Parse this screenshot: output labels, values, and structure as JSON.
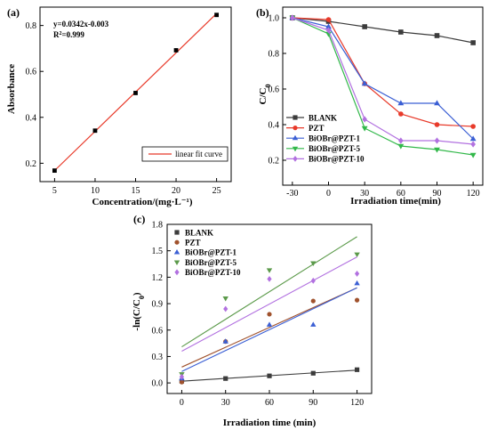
{
  "colors": {
    "BLANK": "#3c3c3c",
    "PZT": "#e83a2a",
    "BiOBr@PZT-1": "#3b5fd4",
    "BiOBr@PZT-5": "#32b84a",
    "BiOBr@PZT-10": "#b271e0",
    "PZT_c": "#a0522d",
    "BiOBr@PZT-5_c": "#5b9a4a",
    "fit_a": "#e83a2a"
  },
  "chart_data": [
    {
      "panel": "(a)",
      "type": "scatter",
      "xlabel": "Concentration/(mg·L⁻¹)",
      "ylabel": "Absorbance",
      "xlim": [
        3.2,
        26.8
      ],
      "ylim": [
        0.12,
        0.88
      ],
      "xticks": [
        5,
        10,
        15,
        20,
        25
      ],
      "yticks": [
        0.2,
        0.4,
        0.6,
        0.8
      ],
      "x": [
        5,
        10,
        15,
        20,
        25
      ],
      "y": [
        0.168,
        0.342,
        0.506,
        0.692,
        0.846
      ],
      "fit": {
        "slope": 0.0342,
        "intercept": -0.003
      },
      "annotation_equation": "y=0.0342x-0.003",
      "annotation_r2_prefix": "R",
      "annotation_r2_value": "=0.999",
      "legend": "linear fit curve",
      "legend_position": "bottom-right"
    },
    {
      "panel": "(b)",
      "type": "line",
      "xlabel": "Irradiation time(min)",
      "ylabel": "C/C",
      "ylabel_sub": "0",
      "xlim": [
        -38,
        128
      ],
      "ylim": [
        0.06,
        1.06
      ],
      "x": [
        -30,
        0,
        30,
        60,
        90,
        120
      ],
      "yticks": [
        0.2,
        0.4,
        0.6,
        0.8,
        1.0
      ],
      "ytick_labels": [
        "0.2",
        "0.4",
        "0.6",
        "0.8",
        "1.0"
      ],
      "legend_position": "lower-left",
      "series": [
        {
          "name": "BLANK",
          "marker": "square",
          "values": [
            1.0,
            0.98,
            0.95,
            0.92,
            0.9,
            0.86
          ]
        },
        {
          "name": "PZT",
          "marker": "circle",
          "values": [
            1.0,
            0.99,
            0.63,
            0.46,
            0.4,
            0.39
          ]
        },
        {
          "name": "BiOBr@PZT-1",
          "marker": "triangle-up",
          "values": [
            1.0,
            0.95,
            0.63,
            0.52,
            0.52,
            0.32
          ]
        },
        {
          "name": "BiOBr@PZT-5",
          "marker": "triangle-down",
          "values": [
            1.0,
            0.91,
            0.38,
            0.28,
            0.26,
            0.23
          ]
        },
        {
          "name": "BiOBr@PZT-10",
          "marker": "diamond",
          "values": [
            1.0,
            0.93,
            0.43,
            0.31,
            0.31,
            0.29
          ]
        }
      ]
    },
    {
      "panel": "(c)",
      "type": "scatter",
      "xlabel": "Irradiation time (min)",
      "ylabel": "-ln(C/C",
      "ylabel_sub": "0",
      "ylabel_end": ")",
      "xlim": [
        -10,
        130
      ],
      "ylim": [
        -0.12,
        1.8
      ],
      "x": [
        0,
        30,
        60,
        90,
        120
      ],
      "yticks": [
        0.0,
        0.3,
        0.6,
        0.9,
        1.2,
        1.5,
        1.8
      ],
      "ytick_labels": [
        "0.0",
        "0.3",
        "0.6",
        "0.9",
        "1.2",
        "1.5",
        "1.8"
      ],
      "legend_position": "top-left",
      "series": [
        {
          "name": "BLANK",
          "marker": "square",
          "values": [
            0.02,
            0.05,
            0.08,
            0.11,
            0.15
          ],
          "fit": [
            0.02,
            0.145
          ]
        },
        {
          "name": "PZT",
          "marker": "circle",
          "values": [
            0.01,
            0.47,
            0.78,
            0.93,
            0.94
          ],
          "fit": [
            0.18,
            1.08
          ]
        },
        {
          "name": "BiOBr@PZT-1",
          "marker": "triangle-up",
          "values": [
            0.05,
            0.47,
            0.66,
            0.66,
            1.13
          ],
          "fit": [
            0.13,
            1.08
          ]
        },
        {
          "name": "BiOBr@PZT-5",
          "marker": "triangle-down",
          "values": [
            0.1,
            0.96,
            1.28,
            1.36,
            1.46
          ],
          "fit": [
            0.41,
            1.66
          ]
        },
        {
          "name": "BiOBr@PZT-10",
          "marker": "diamond",
          "values": [
            0.07,
            0.84,
            1.18,
            1.16,
            1.24
          ],
          "fit": [
            0.36,
            1.43
          ]
        }
      ]
    }
  ]
}
